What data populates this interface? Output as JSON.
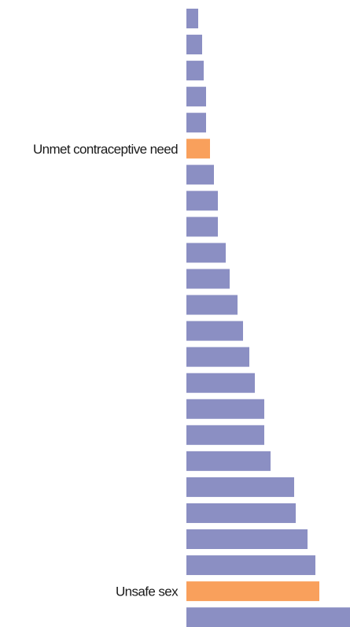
{
  "chart_data": {
    "type": "bar",
    "orientation": "horizontal",
    "title": "",
    "xlabel": "",
    "ylabel": "",
    "xlim": [
      0,
      208
    ],
    "grid": false,
    "legend": "none",
    "colors": {
      "default_bar": "#8b8fc3",
      "highlight_bar": "#f9a05c",
      "label_text": "#1a1a1a"
    },
    "bars": [
      {
        "label": "",
        "value": 15,
        "highlight": false
      },
      {
        "label": "",
        "value": 20,
        "highlight": false
      },
      {
        "label": "",
        "value": 22,
        "highlight": false
      },
      {
        "label": "",
        "value": 25,
        "highlight": false
      },
      {
        "label": "",
        "value": 25,
        "highlight": false
      },
      {
        "label": "Unmet contraceptive need",
        "value": 30,
        "highlight": true
      },
      {
        "label": "",
        "value": 35,
        "highlight": false
      },
      {
        "label": "",
        "value": 40,
        "highlight": false
      },
      {
        "label": "",
        "value": 40,
        "highlight": false
      },
      {
        "label": "",
        "value": 50,
        "highlight": false
      },
      {
        "label": "",
        "value": 55,
        "highlight": false
      },
      {
        "label": "",
        "value": 65,
        "highlight": false
      },
      {
        "label": "",
        "value": 72,
        "highlight": false
      },
      {
        "label": "",
        "value": 80,
        "highlight": false
      },
      {
        "label": "",
        "value": 87,
        "highlight": false
      },
      {
        "label": "",
        "value": 99,
        "highlight": false
      },
      {
        "label": "",
        "value": 99,
        "highlight": false
      },
      {
        "label": "",
        "value": 107,
        "highlight": false
      },
      {
        "label": "",
        "value": 137,
        "highlight": false
      },
      {
        "label": "",
        "value": 139,
        "highlight": false
      },
      {
        "label": "",
        "value": 154,
        "highlight": false
      },
      {
        "label": "",
        "value": 164,
        "highlight": false
      },
      {
        "label": "Unsafe sex",
        "value": 169,
        "highlight": true
      },
      {
        "label": "",
        "value": 208,
        "highlight": false
      }
    ]
  }
}
